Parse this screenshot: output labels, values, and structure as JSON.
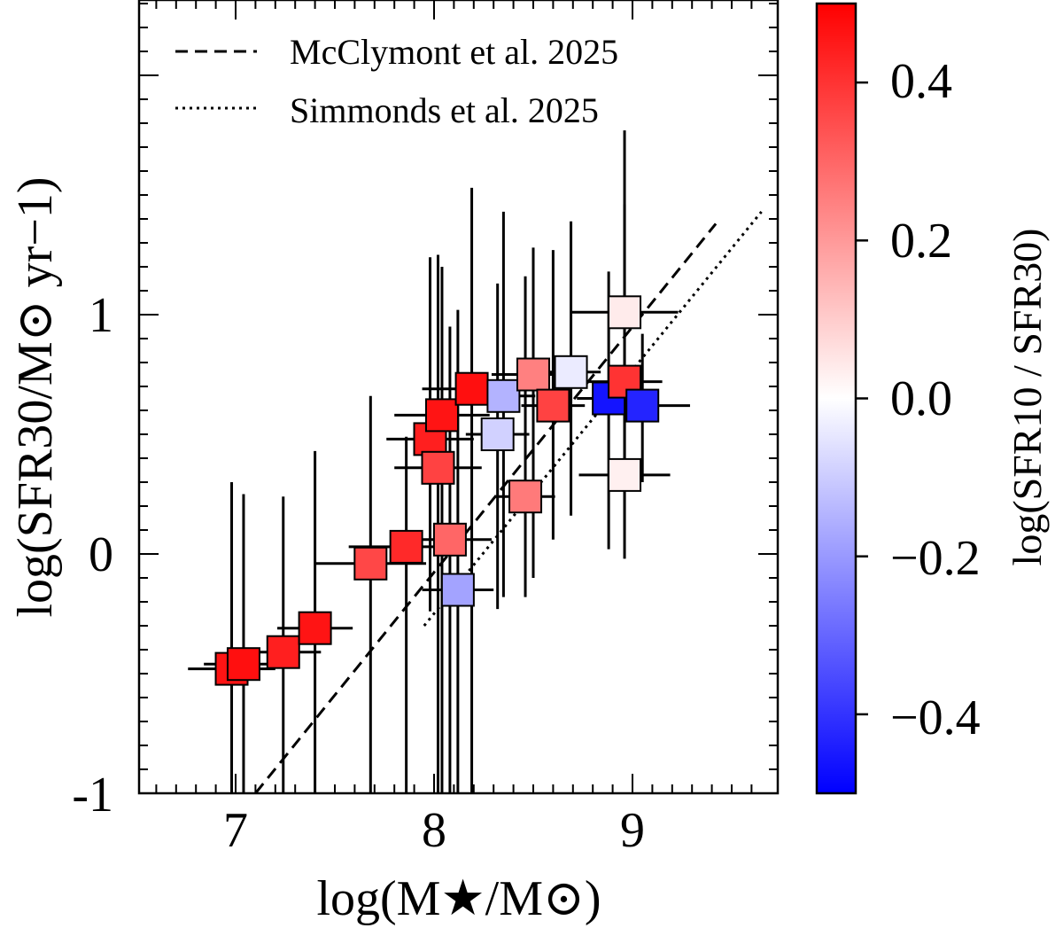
{
  "chart_data": {
    "type": "scatter",
    "xlabel": "log(M★/M⊙)",
    "ylabel": "log(SFR30/M⊙ yr−1)",
    "xlim": [
      6.6,
      9.65
    ],
    "ylim": [
      -1,
      2.3
    ],
    "x_ticks": [
      7,
      8,
      9
    ],
    "y_ticks": [
      -1,
      0,
      1
    ],
    "x_tick_labels": [
      "7",
      "8",
      "9"
    ],
    "y_tick_labels": [
      "-1",
      "0",
      "1"
    ],
    "legend": {
      "placement": "top-left",
      "entries": [
        {
          "label": "McClymont et al. 2025",
          "style": "dashed"
        },
        {
          "label": "Simmonds et al. 2025",
          "style": "dotted"
        }
      ]
    },
    "lines": [
      {
        "label": "McClymont et al. 2025",
        "style": "dashed",
        "x": [
          7.1,
          9.42
        ],
        "y": [
          -1.0,
          1.38
        ]
      },
      {
        "label": "Simmonds et al. 2025",
        "style": "dotted",
        "x": [
          7.95,
          9.65
        ],
        "y": [
          -0.3,
          1.43
        ]
      }
    ],
    "colorbar": {
      "label": "log(SFR10 / SFR30)",
      "range": [
        -0.5,
        0.5
      ],
      "ticks": [
        -0.4,
        -0.2,
        0.0,
        0.2,
        0.4
      ],
      "tick_labels": [
        "−0.4",
        "−0.2",
        "0.0",
        "0.2",
        "0.4"
      ],
      "colormap": "bwr",
      "colors": {
        "low": "#0000ff",
        "mid": "#ffffff",
        "high": "#ff0000"
      }
    },
    "points": [
      {
        "x": 6.98,
        "y": -0.48,
        "c": 0.46,
        "xerr": 0.22,
        "ylo": -1.0,
        "yhi": 0.3
      },
      {
        "x": 7.04,
        "y": -0.46,
        "c": 0.47,
        "xerr": 0.2,
        "ylo": -1.0,
        "yhi": 0.25
      },
      {
        "x": 7.24,
        "y": -0.41,
        "c": 0.44,
        "xerr": 0.19,
        "ylo": -1.0,
        "yhi": 0.24
      },
      {
        "x": 7.4,
        "y": -0.31,
        "c": 0.46,
        "xerr": 0.19,
        "ylo": -1.0,
        "yhi": 0.43
      },
      {
        "x": 7.68,
        "y": -0.04,
        "c": 0.36,
        "xerr": 0.28,
        "ylo": -1.0,
        "yhi": 0.66
      },
      {
        "x": 7.86,
        "y": 0.03,
        "c": 0.42,
        "xerr": 0.29,
        "ylo": -1.0,
        "yhi": 0.49
      },
      {
        "x": 7.98,
        "y": 0.48,
        "c": 0.44,
        "xerr": 0.22,
        "ylo": -0.24,
        "yhi": 1.24
      },
      {
        "x": 8.02,
        "y": 0.36,
        "c": 0.37,
        "xerr": 0.22,
        "ylo": -1.0,
        "yhi": 1.25
      },
      {
        "x": 8.04,
        "y": 0.58,
        "c": 0.46,
        "xerr": 0.24,
        "ylo": -1.0,
        "yhi": 1.2
      },
      {
        "x": 8.08,
        "y": 0.06,
        "c": 0.3,
        "xerr": 0.21,
        "ylo": -1.0,
        "yhi": 0.95
      },
      {
        "x": 8.12,
        "y": -0.15,
        "c": -0.18,
        "xerr": 0.18,
        "ylo": -1.0,
        "yhi": 1.02
      },
      {
        "x": 8.19,
        "y": 0.69,
        "c": 0.47,
        "xerr": 0.25,
        "ylo": -1.0,
        "yhi": 1.53
      },
      {
        "x": 8.32,
        "y": 0.5,
        "c": -0.09,
        "xerr": 0.16,
        "ylo": -0.23,
        "yhi": 1.13
      },
      {
        "x": 8.35,
        "y": 0.66,
        "c": -0.15,
        "xerr": 0.16,
        "ylo": -0.18,
        "yhi": 1.43
      },
      {
        "x": 8.46,
        "y": 0.24,
        "c": 0.26,
        "xerr": 0.15,
        "ylo": -0.18,
        "yhi": 1.16
      },
      {
        "x": 8.5,
        "y": 0.75,
        "c": 0.25,
        "xerr": 0.21,
        "ylo": -0.1,
        "yhi": 1.28
      },
      {
        "x": 8.6,
        "y": 0.62,
        "c": 0.37,
        "xerr": 0.16,
        "ylo": 0.06,
        "yhi": 1.27
      },
      {
        "x": 8.69,
        "y": 0.76,
        "c": -0.04,
        "xerr": 0.15,
        "ylo": 0.16,
        "yhi": 1.39
      },
      {
        "x": 8.88,
        "y": 0.65,
        "c": -0.46,
        "xerr": 0.16,
        "ylo": 0.02,
        "yhi": 1.18
      },
      {
        "x": 8.96,
        "y": 1.01,
        "c": 0.04,
        "xerr": 0.27,
        "ylo": 0.4,
        "yhi": 1.77
      },
      {
        "x": 8.96,
        "y": 0.72,
        "c": 0.4,
        "xerr": 0.19,
        "ylo": 0.1,
        "yhi": 1.46
      },
      {
        "x": 8.96,
        "y": 0.33,
        "c": 0.03,
        "xerr": 0.23,
        "ylo": -0.02,
        "yhi": 0.55
      },
      {
        "x": 9.05,
        "y": 0.62,
        "c": -0.43,
        "xerr": 0.24,
        "ylo": 0.3,
        "yhi": 0.92
      }
    ]
  }
}
